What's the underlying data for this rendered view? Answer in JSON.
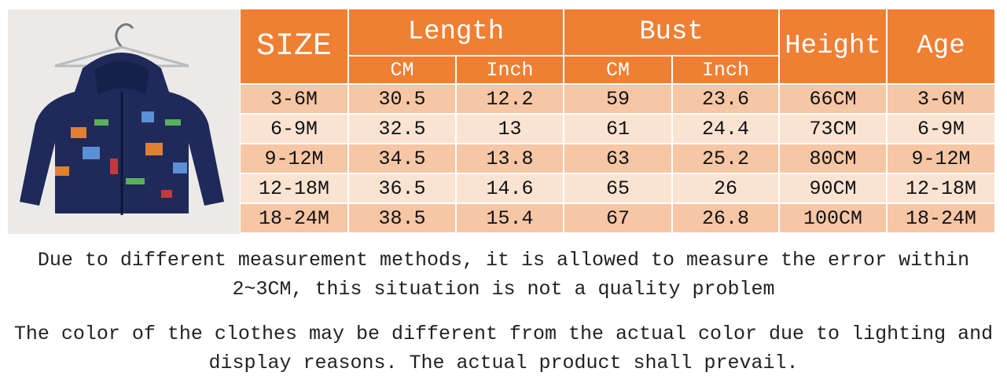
{
  "header": {
    "size": "SIZE",
    "length": "Length",
    "bust": "Bust",
    "height": "Height",
    "age": "Age",
    "length_cm": "CM",
    "length_inch": "Inch",
    "bust_cm": "CM",
    "bust_inch": "Inch"
  },
  "rows": [
    [
      "3-6M",
      "30.5",
      "12.2",
      "59",
      "23.6",
      "66CM",
      "3-6M"
    ],
    [
      "6-9M",
      "32.5",
      "13",
      "61",
      "24.4",
      "73CM",
      "6-9M"
    ],
    [
      "9-12M",
      "34.5",
      "13.8",
      "63",
      "25.2",
      "80CM",
      "9-12M"
    ],
    [
      "12-18M",
      "36.5",
      "14.6",
      "65",
      "26",
      "90CM",
      "12-18M"
    ],
    [
      "18-24M",
      "38.5",
      "15.4",
      "67",
      "26.8",
      "100CM",
      "18-24M"
    ]
  ],
  "notes": [
    "Due to different measurement methods, it is allowed to measure the error within 2~3CM, this situation is not a quality problem",
    "The color of the clothes may be different from the actual color due to lighting and display reasons. The actual product shall prevail."
  ]
}
